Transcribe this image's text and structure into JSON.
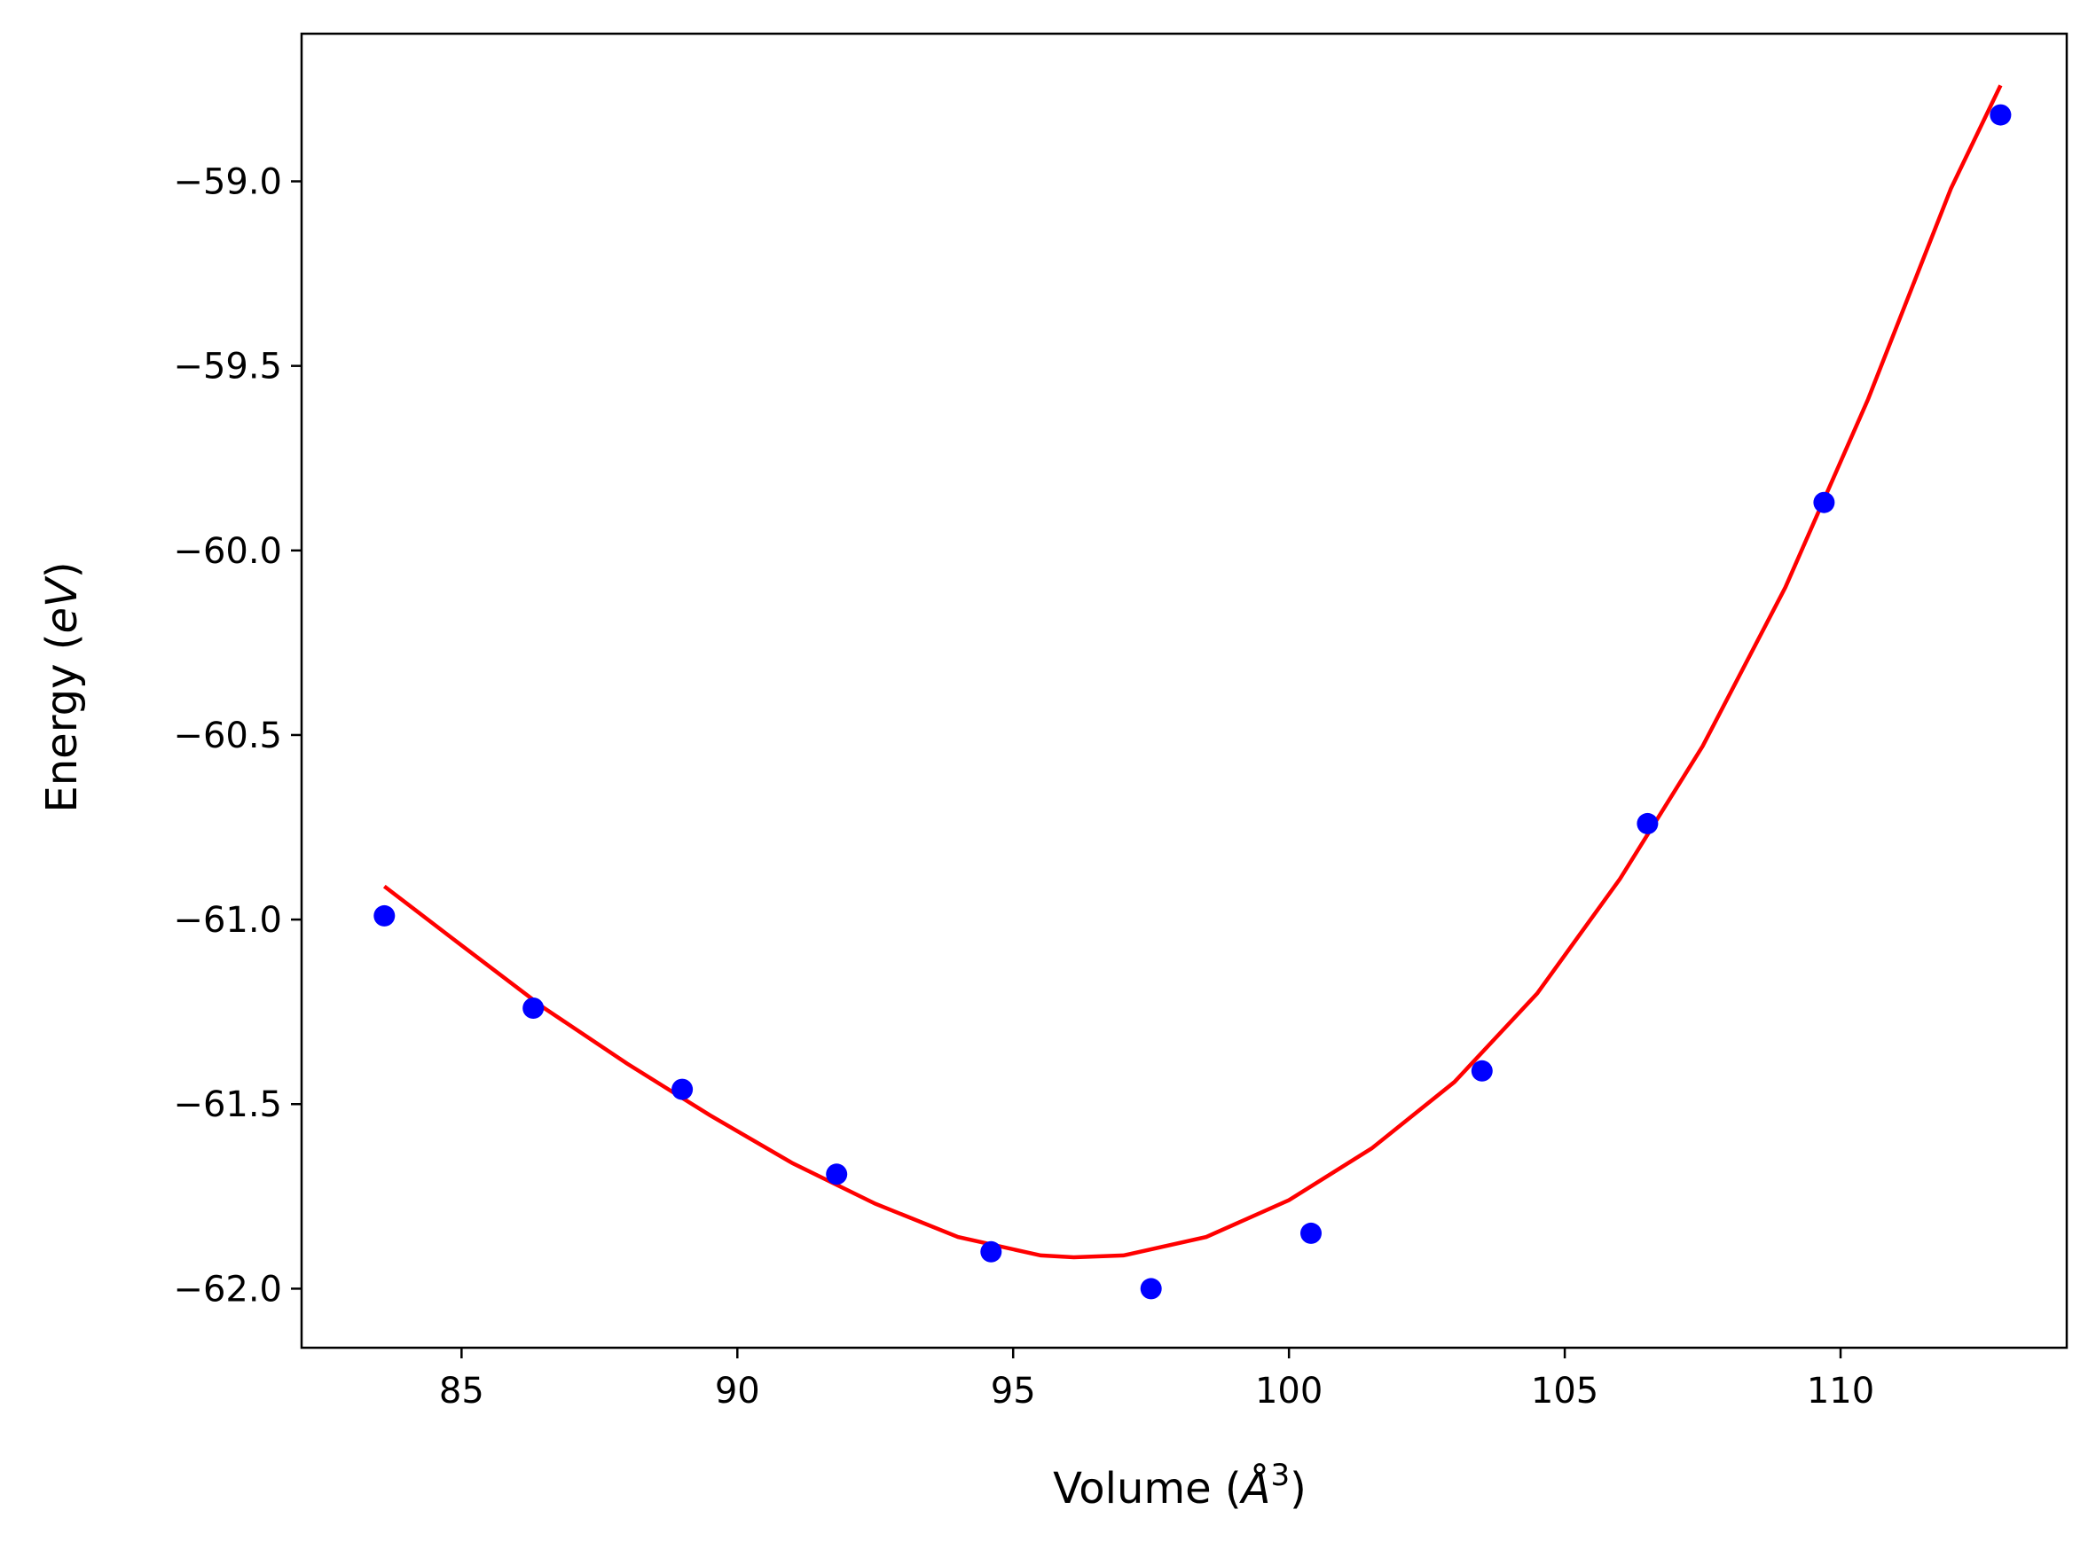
{
  "chart_data": {
    "type": "scatter",
    "title": "",
    "xlabel": "Volume (",
    "xlabel_symbol": "Å",
    "xlabel_power": "3",
    "xlabel_close": ")",
    "ylabel": "Energy (",
    "ylabel_symbol": "eV",
    "ylabel_close": ")",
    "xlim": [
      82.1,
      114.1
    ],
    "ylim": [
      -62.16,
      -58.6
    ],
    "xticks": [
      85,
      90,
      95,
      100,
      105,
      110
    ],
    "yticks": [
      -59.0,
      -59.5,
      -60.0,
      -60.5,
      -61.0,
      -61.5,
      -62.0
    ],
    "xtick_labels": [
      "85",
      "90",
      "95",
      "100",
      "105",
      "110"
    ],
    "ytick_labels": [
      "−59.0",
      "−59.5",
      "−60.0",
      "−60.5",
      "−61.0",
      "−61.5",
      "−62.0"
    ],
    "grid": false,
    "series": [
      {
        "kind": "scatter",
        "color": "#0000ff",
        "x": [
          83.6,
          86.3,
          89.0,
          91.8,
          94.6,
          97.5,
          100.4,
          103.5,
          106.5,
          109.7,
          112.9
        ],
        "y": [
          -60.99,
          -61.24,
          -61.46,
          -61.69,
          -61.9,
          -62.0,
          -61.85,
          -61.41,
          -60.74,
          -59.87,
          -58.82
        ]
      },
      {
        "kind": "line",
        "color": "#ff0000",
        "x": [
          83.6,
          85.0,
          86.5,
          88.0,
          89.5,
          91.0,
          92.5,
          94.0,
          95.5,
          96.1,
          97.0,
          98.5,
          100.0,
          101.5,
          103.0,
          104.5,
          106.0,
          107.5,
          109.0,
          110.5,
          112.0,
          112.9
        ],
        "y": [
          -60.91,
          -61.07,
          -61.24,
          -61.39,
          -61.53,
          -61.66,
          -61.77,
          -61.86,
          -61.91,
          -61.915,
          -61.91,
          -61.86,
          -61.76,
          -61.62,
          -61.44,
          -61.2,
          -60.89,
          -60.53,
          -60.1,
          -59.59,
          -59.02,
          -58.74
        ]
      }
    ]
  },
  "colors": {
    "axes": "#000000",
    "points": "#0000ff",
    "fit": "#ff0000"
  }
}
